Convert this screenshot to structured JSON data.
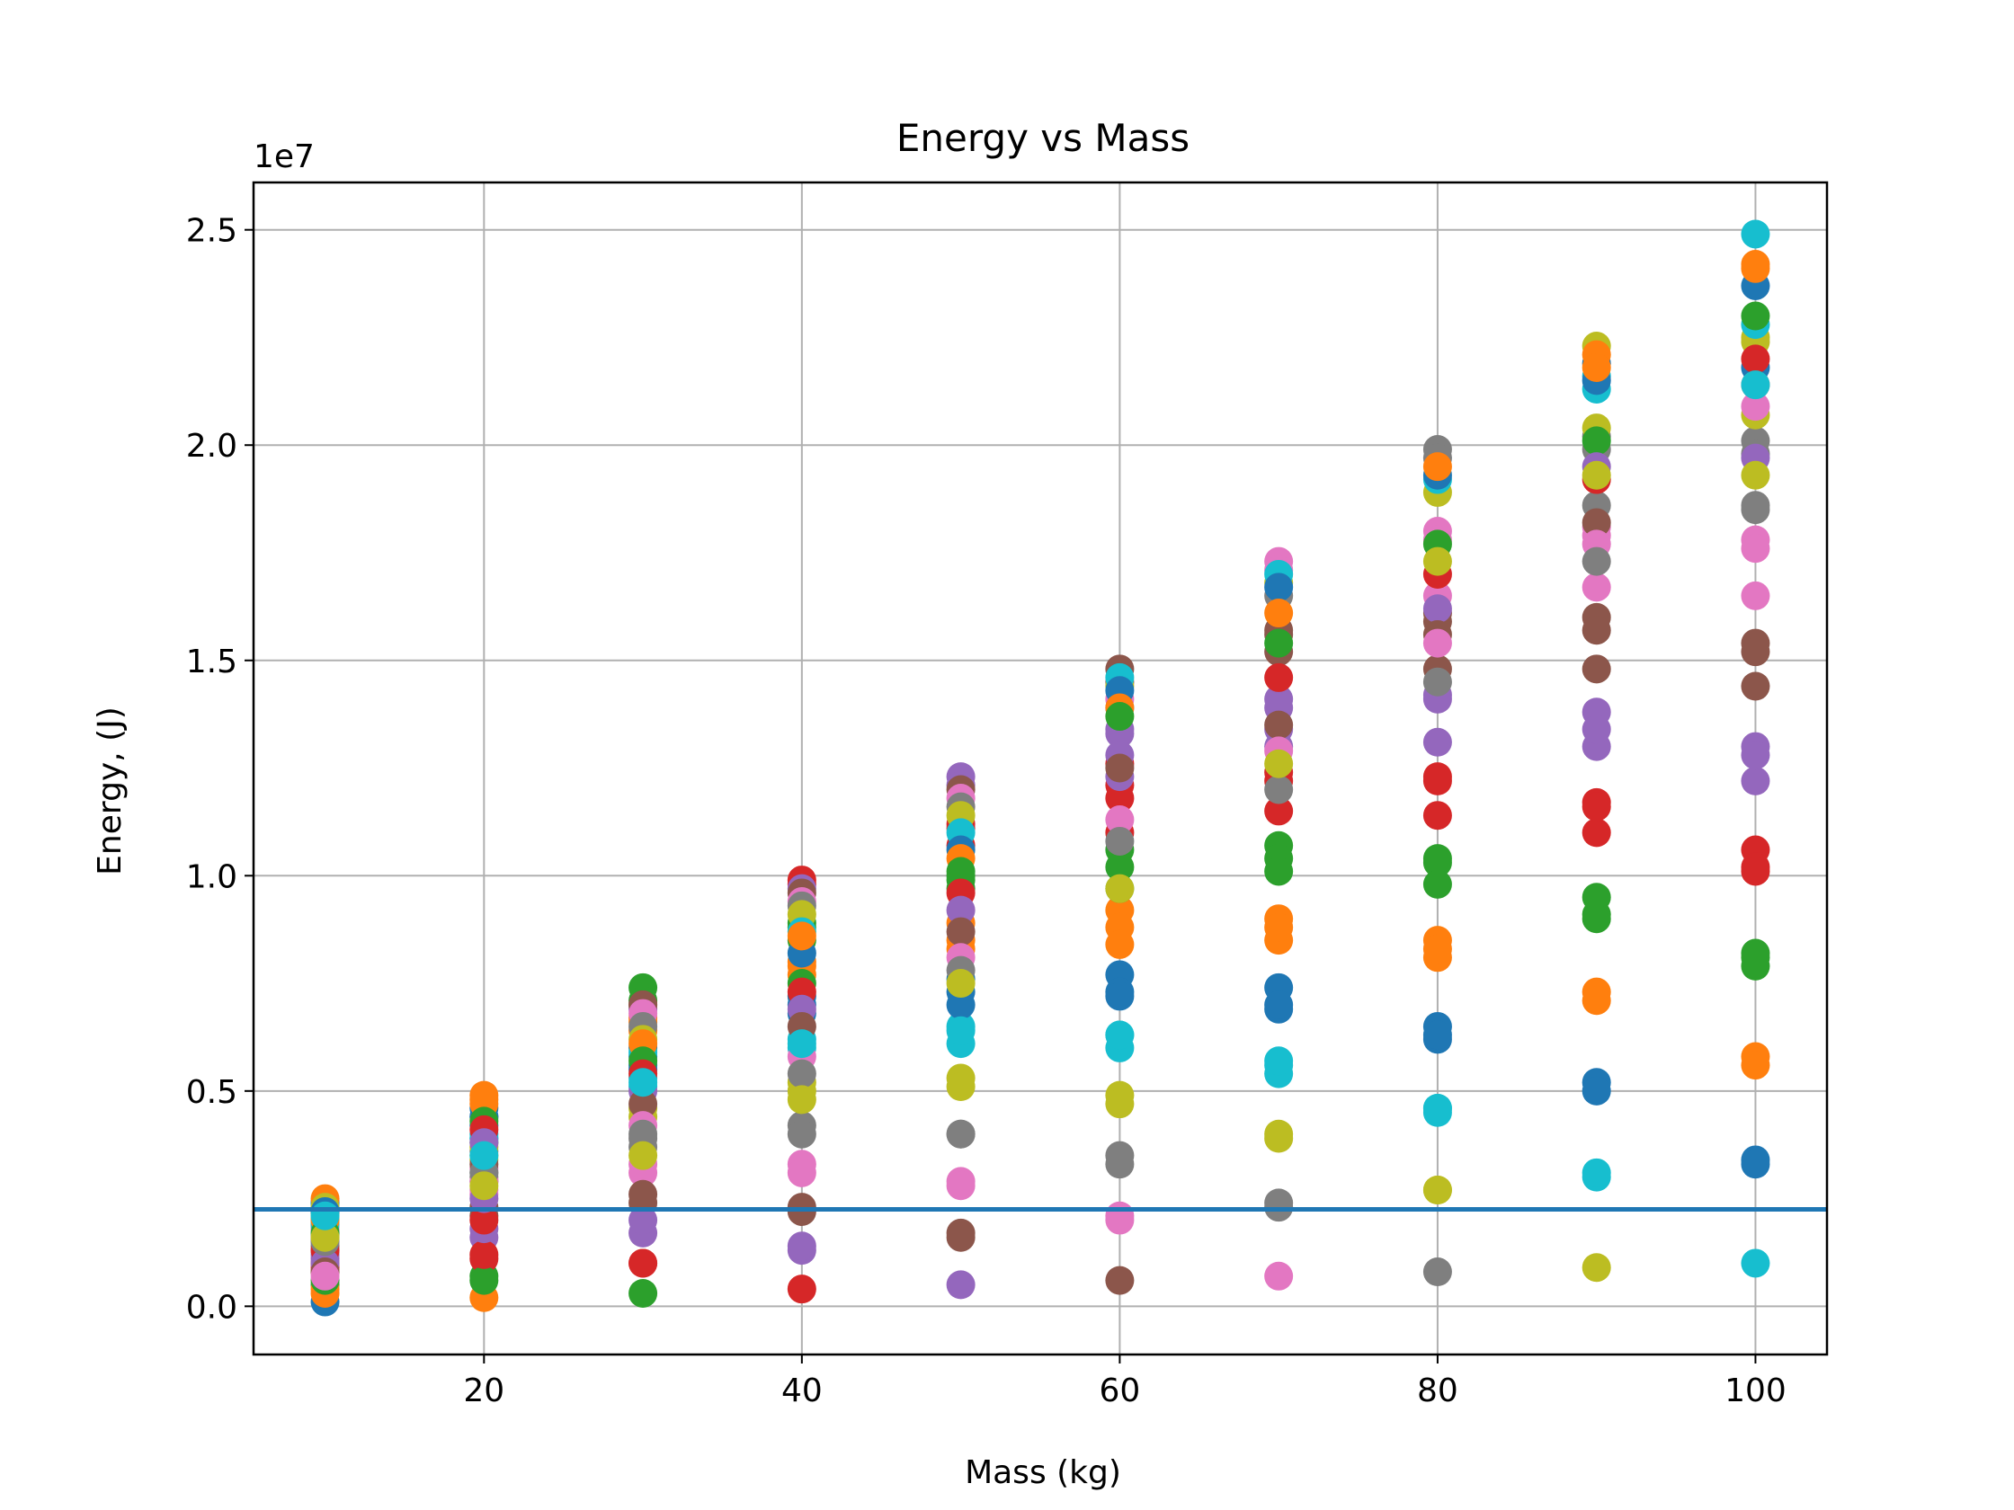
{
  "chart_data": {
    "type": "scatter",
    "title": "Energy vs Mass",
    "xlabel": "Mass (kg)",
    "ylabel": "Energy, (J)",
    "y_offset_text": "1e7",
    "y_scale_factor": 10000000,
    "xlim": [
      5.5,
      104.5
    ],
    "ylim": [
      -1120000,
      26100000
    ],
    "x_ticks": [
      20,
      40,
      60,
      80,
      100
    ],
    "x_tick_labels": [
      "20",
      "40",
      "60",
      "80",
      "100"
    ],
    "y_ticks": [
      0,
      5000000,
      10000000,
      15000000,
      20000000,
      25000000
    ],
    "y_tick_labels": [
      "0.0",
      "0.5",
      "1.0",
      "1.5",
      "2.0",
      "2.5"
    ],
    "grid": true,
    "horizontal_line": {
      "y": 2250000,
      "color": "#1f77b4"
    },
    "x": [
      10,
      20,
      30,
      40,
      50,
      60,
      70,
      80,
      90,
      100
    ],
    "series": [
      {
        "color": "#1f77b4",
        "values": [
          100000,
          4400000,
          6000000,
          7000000,
          7600000,
          7700000,
          7400000,
          6500000,
          5200000,
          3400000
        ]
      },
      {
        "color": "#ff7f0e",
        "values": [
          300000,
          4900000,
          6700000,
          8000000,
          8900000,
          9200000,
          9000000,
          8500000,
          7300000,
          5800000
        ]
      },
      {
        "color": "#2ca02c",
        "values": [
          500000,
          700000,
          7400000,
          8900000,
          10000000,
          10600000,
          10700000,
          10300000,
          9500000,
          8200000
        ]
      },
      {
        "color": "#d62728",
        "values": [
          900000,
          1100000,
          1000000,
          9900000,
          11200000,
          12100000,
          12400000,
          12300000,
          11700000,
          10600000
        ]
      },
      {
        "color": "#9467bd",
        "values": [
          1100000,
          1600000,
          1700000,
          1300000,
          500000,
          13400000,
          14100000,
          14200000,
          13800000,
          13000000
        ]
      },
      {
        "color": "#8c564b",
        "values": [
          1400000,
          2100000,
          2400000,
          2300000,
          1700000,
          600000,
          15700000,
          16100000,
          16000000,
          15400000
        ]
      },
      {
        "color": "#e377c2",
        "values": [
          1600000,
          2600000,
          3100000,
          3300000,
          2900000,
          2000000,
          700000,
          18000000,
          18100000,
          17800000
        ]
      },
      {
        "color": "#7f7f7f",
        "values": [
          1800000,
          3100000,
          3900000,
          4200000,
          4000000,
          3500000,
          2300000,
          800000,
          20200000,
          20100000
        ]
      },
      {
        "color": "#bcbd22",
        "values": [
          2000000,
          3500000,
          4600000,
          5200000,
          5300000,
          4900000,
          4000000,
          2700000,
          900000,
          22500000
        ]
      },
      {
        "color": "#17becf",
        "values": [
          2200000,
          3900000,
          5300000,
          6200000,
          6500000,
          6300000,
          5600000,
          4600000,
          3000000,
          1000000
        ]
      },
      {
        "color": "#1f77b4",
        "values": [
          2400000,
          4200000,
          5600000,
          6800000,
          7300000,
          7300000,
          6900000,
          6200000,
          5000000,
          3300000
        ]
      },
      {
        "color": "#ff7f0e",
        "values": [
          400000,
          200000,
          6400000,
          7700000,
          8500000,
          8800000,
          8500000,
          8100000,
          7100000,
          5600000
        ]
      },
      {
        "color": "#2ca02c",
        "values": [
          600000,
          600000,
          300000,
          8500000,
          9700000,
          10200000,
          10400000,
          9800000,
          9100000,
          7900000
        ]
      },
      {
        "color": "#d62728",
        "values": [
          800000,
          1200000,
          1000000,
          400000,
          10700000,
          11800000,
          11500000,
          11400000,
          11000000,
          10200000
        ]
      },
      {
        "color": "#9467bd",
        "values": [
          1200000,
          1800000,
          2000000,
          1400000,
          12300000,
          12300000,
          13400000,
          13100000,
          13000000,
          12200000
        ]
      },
      {
        "color": "#8c564b",
        "values": [
          1300000,
          2300000,
          2600000,
          2200000,
          1600000,
          14800000,
          15200000,
          14800000,
          14800000,
          14400000
        ]
      },
      {
        "color": "#e377c2",
        "values": [
          1700000,
          2700000,
          3300000,
          3100000,
          2800000,
          2100000,
          17300000,
          16500000,
          16700000,
          16500000
        ]
      },
      {
        "color": "#7f7f7f",
        "values": [
          1900000,
          3000000,
          3700000,
          4000000,
          4000000,
          3300000,
          2400000,
          19900000,
          18600000,
          18600000
        ]
      },
      {
        "color": "#bcbd22",
        "values": [
          2100000,
          3400000,
          4400000,
          5000000,
          5100000,
          4700000,
          3900000,
          2700000,
          22300000,
          20700000
        ]
      },
      {
        "color": "#17becf",
        "values": [
          2300000,
          4000000,
          5100000,
          6000000,
          6100000,
          6000000,
          5400000,
          4500000,
          21300000,
          24900000
        ]
      },
      {
        "color": "#1f77b4",
        "values": [
          2400000,
          4600000,
          5800000,
          7200000,
          7000000,
          7200000,
          7000000,
          6300000,
          21900000,
          23700000
        ]
      },
      {
        "color": "#ff7f0e",
        "values": [
          2500000,
          4800000,
          6600000,
          7900000,
          8300000,
          8400000,
          8800000,
          8300000,
          22100000,
          24100000
        ]
      },
      {
        "color": "#2ca02c",
        "values": [
          2200000,
          3800000,
          7100000,
          8800000,
          9900000,
          9700000,
          10100000,
          10400000,
          9000000,
          8100000
        ]
      },
      {
        "color": "#d62728",
        "values": [
          1000000,
          2000000,
          7000000,
          9800000,
          11100000,
          11000000,
          12200000,
          12200000,
          11600000,
          10100000
        ]
      },
      {
        "color": "#9467bd",
        "values": [
          1500000,
          2500000,
          6900000,
          9700000,
          12100000,
          13300000,
          13900000,
          14100000,
          13400000,
          12800000
        ]
      },
      {
        "color": "#8c564b",
        "values": [
          1600000,
          2900000,
          7000000,
          9600000,
          12000000,
          14500000,
          15600000,
          15900000,
          15700000,
          15200000
        ]
      },
      {
        "color": "#e377c2",
        "values": [
          1800000,
          3200000,
          6800000,
          9400000,
          11800000,
          14100000,
          17100000,
          17800000,
          17900000,
          17600000
        ]
      },
      {
        "color": "#7f7f7f",
        "values": [
          2000000,
          3600000,
          6500000,
          9300000,
          11600000,
          13900000,
          16500000,
          19700000,
          19900000,
          19800000
        ]
      },
      {
        "color": "#bcbd22",
        "values": [
          2300000,
          3700000,
          6200000,
          9100000,
          11400000,
          14400000,
          16800000,
          18900000,
          20400000,
          22400000
        ]
      },
      {
        "color": "#17becf",
        "values": [
          1900000,
          3900000,
          5900000,
          8700000,
          11000000,
          14600000,
          17000000,
          19200000,
          21600000,
          22800000
        ]
      },
      {
        "color": "#1f77b4",
        "values": [
          2200000,
          4400000,
          5500000,
          8200000,
          10600000,
          14300000,
          16700000,
          19300000,
          21500000,
          21800000
        ]
      },
      {
        "color": "#ff7f0e",
        "values": [
          2000000,
          4700000,
          6100000,
          8600000,
          10400000,
          13900000,
          16100000,
          19500000,
          21800000,
          24200000
        ]
      },
      {
        "color": "#2ca02c",
        "values": [
          1700000,
          4300000,
          5700000,
          7500000,
          10100000,
          13700000,
          15400000,
          17700000,
          20100000,
          23000000
        ]
      },
      {
        "color": "#d62728",
        "values": [
          1300000,
          4100000,
          5400000,
          7300000,
          9600000,
          12600000,
          14600000,
          17000000,
          19200000,
          22000000
        ]
      },
      {
        "color": "#9467bd",
        "values": [
          1000000,
          3800000,
          5000000,
          6900000,
          9200000,
          12800000,
          13000000,
          16200000,
          19500000,
          19700000
        ]
      },
      {
        "color": "#8c564b",
        "values": [
          800000,
          3300000,
          4700000,
          6500000,
          8700000,
          12500000,
          13500000,
          15600000,
          18200000,
          21400000
        ]
      },
      {
        "color": "#e377c2",
        "values": [
          700000,
          2900000,
          4200000,
          5800000,
          8100000,
          11300000,
          12900000,
          15400000,
          17700000,
          20900000
        ]
      },
      {
        "color": "#7f7f7f",
        "values": [
          1500000,
          3100000,
          4000000,
          5400000,
          7800000,
          10800000,
          12000000,
          14500000,
          17300000,
          18500000
        ]
      },
      {
        "color": "#bcbd22",
        "values": [
          1600000,
          2800000,
          3500000,
          4800000,
          7500000,
          9700000,
          12600000,
          17300000,
          19300000,
          19300000
        ]
      },
      {
        "color": "#17becf",
        "values": [
          2100000,
          3500000,
          5200000,
          6100000,
          6400000,
          6300000,
          5700000,
          4600000,
          3100000,
          21400000
        ]
      }
    ]
  }
}
